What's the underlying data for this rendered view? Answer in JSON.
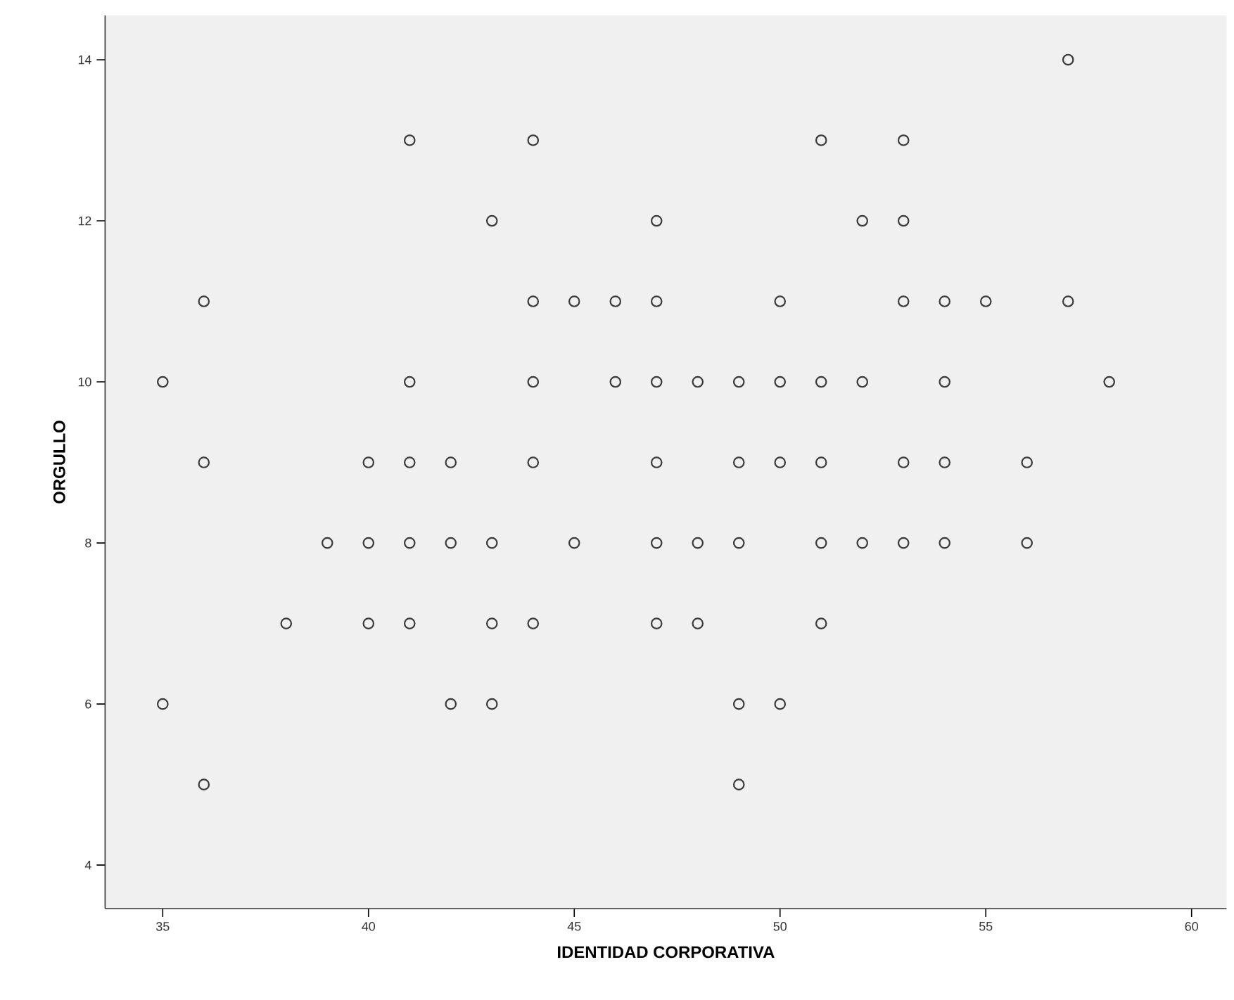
{
  "chart_data": {
    "type": "scatter",
    "xlabel": "IDENTIDAD CORPORATIVA",
    "ylabel": "ORGULLO",
    "x": [
      57,
      41,
      44,
      51,
      53,
      43,
      47,
      52,
      53,
      36,
      44,
      45,
      46,
      47,
      50,
      53,
      54,
      55,
      57,
      35,
      41,
      44,
      46,
      47,
      48,
      49,
      50,
      51,
      52,
      54,
      58,
      36,
      40,
      41,
      42,
      44,
      47,
      49,
      50,
      51,
      53,
      54,
      56,
      39,
      40,
      41,
      42,
      43,
      45,
      47,
      48,
      49,
      51,
      52,
      53,
      54,
      56,
      38,
      40,
      41,
      43,
      44,
      47,
      48,
      51,
      35,
      42,
      43,
      49,
      50,
      36,
      49
    ],
    "values": [
      14,
      13,
      13,
      13,
      13,
      12,
      12,
      12,
      12,
      11,
      11,
      11,
      11,
      11,
      11,
      11,
      11,
      11,
      11,
      10,
      10,
      10,
      10,
      10,
      10,
      10,
      10,
      10,
      10,
      10,
      10,
      9,
      9,
      9,
      9,
      9,
      9,
      9,
      9,
      9,
      9,
      9,
      9,
      8,
      8,
      8,
      8,
      8,
      8,
      8,
      8,
      8,
      8,
      8,
      8,
      8,
      8,
      7,
      7,
      7,
      7,
      7,
      7,
      7,
      7,
      6,
      6,
      6,
      6,
      6,
      5,
      5
    ],
    "color": "#3a3a3a",
    "marker": "circle",
    "xlim": [
      33.6,
      60.85
    ],
    "ylim": [
      3.46,
      14.55
    ],
    "xticks": [
      35,
      40,
      45,
      50,
      55,
      60
    ],
    "yticks": [
      4,
      6,
      8,
      10,
      12,
      14
    ]
  }
}
